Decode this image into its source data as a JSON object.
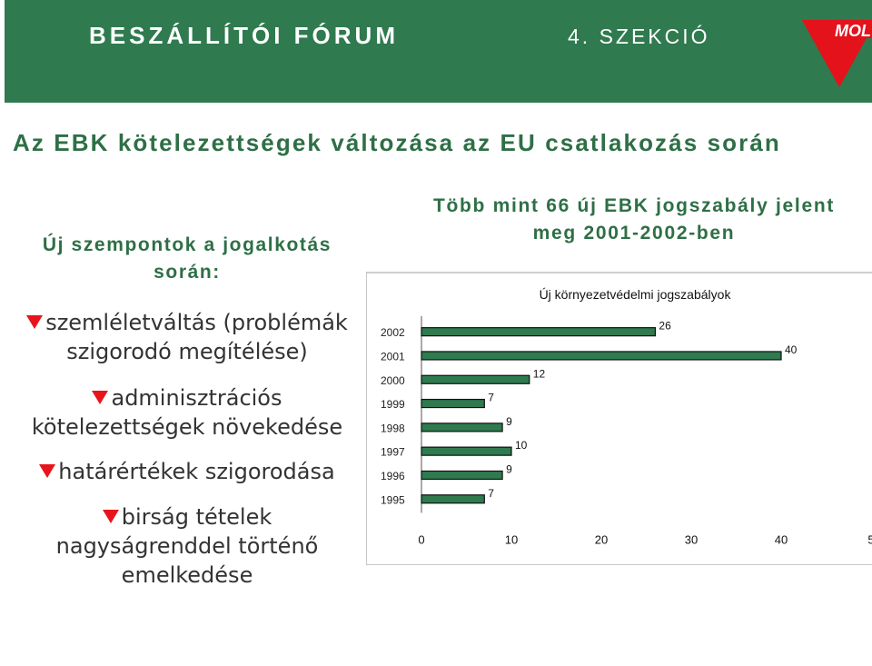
{
  "header": {
    "forum": "BESZÁLLÍTÓI FÓRUM",
    "section": "4. SZEKCIÓ",
    "logo_text": "MOL"
  },
  "main_title": "Az EBK kötelezettségek változása az EU csatlakozás során",
  "left": {
    "heading_line1": "Új szempontok a jogalkotás",
    "heading_line2": "során:",
    "bullets": [
      {
        "line1": "szemléletváltás (problémák",
        "line2": "szigorodó megítélése)"
      },
      {
        "line1": "adminisztrációs",
        "line2": "kötelezettségek növekedése"
      },
      {
        "line1": "határértékek szigorodása",
        "line2": ""
      },
      {
        "line1": "birság tételek",
        "line2": "nagyságrenddel történő",
        "line3": "emelkedése"
      }
    ]
  },
  "right": {
    "title_line1": "Több mint 66 új EBK jogszabály jelent",
    "title_line2": "meg 2001-2002-ben"
  },
  "chart_data": {
    "type": "bar",
    "orientation": "horizontal",
    "title": "Új környezetvédelmi jogszabályok",
    "categories": [
      "2002",
      "2001",
      "2000",
      "1999",
      "1998",
      "1997",
      "1996",
      "1995"
    ],
    "values": [
      26,
      40,
      12,
      7,
      9,
      10,
      9,
      7
    ],
    "xlim": [
      0,
      50
    ],
    "x_ticks": [
      "0",
      "10",
      "20",
      "30",
      "40",
      "5"
    ],
    "bar_color": "#2f7a4f",
    "grid": false
  }
}
